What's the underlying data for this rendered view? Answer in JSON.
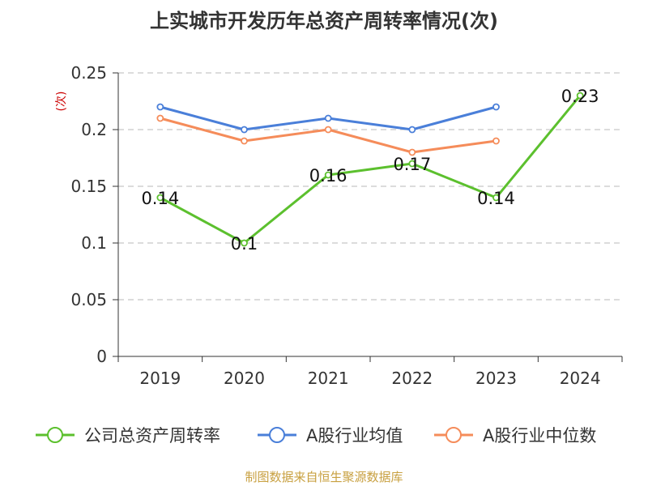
{
  "title": "上实城市开发历年总资产周转率情况(次)",
  "source": "制图数据来自恒生聚源数据库",
  "chart_data": {
    "type": "line",
    "title": "上实城市开发历年总资产周转率情况(次)",
    "ylabel": "(次)",
    "xlabel": "",
    "categories": [
      "2019",
      "2020",
      "2021",
      "2022",
      "2023",
      "2024"
    ],
    "ylim": [
      0,
      0.25
    ],
    "yticks": [
      {
        "value": 0,
        "label": "0"
      },
      {
        "value": 0.05,
        "label": "0.05"
      },
      {
        "value": 0.1,
        "label": "0.1"
      },
      {
        "value": 0.15,
        "label": "0.15"
      },
      {
        "value": 0.2,
        "label": "0.2"
      },
      {
        "value": 0.25,
        "label": "0.25"
      }
    ],
    "grid": true,
    "legend_position": "bottom",
    "series": [
      {
        "name": "公司总资产周转率",
        "color": "#5cc02e",
        "values": [
          0.14,
          0.1,
          0.16,
          0.17,
          0.14,
          0.23
        ],
        "labels": [
          "0.14",
          "0.1",
          "0.16",
          "0.17",
          "0.14",
          "0.23"
        ]
      },
      {
        "name": "A股行业均值",
        "color": "#4a7fd9",
        "values": [
          0.22,
          0.2,
          0.21,
          0.2,
          0.22,
          null
        ]
      },
      {
        "name": "A股行业中位数",
        "color": "#f58c5a",
        "values": [
          0.21,
          0.19,
          0.2,
          0.18,
          0.19,
          null
        ]
      }
    ]
  }
}
